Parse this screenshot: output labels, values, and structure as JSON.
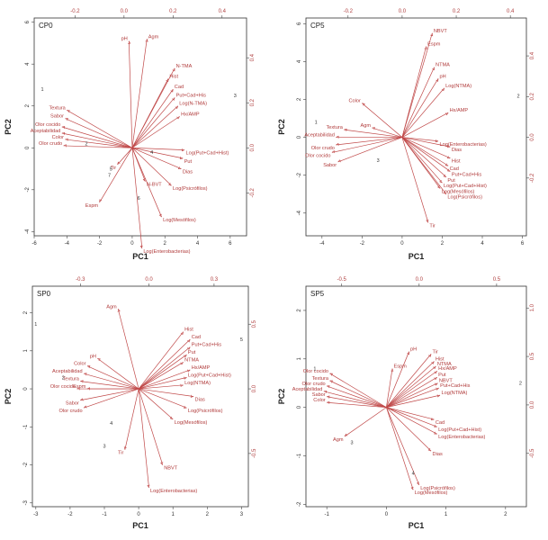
{
  "chart_data": [
    {
      "type": "biplot",
      "title": "CP0",
      "xlabel": "PC1",
      "ylabel": "PC2",
      "xlim": [
        -6,
        7
      ],
      "ylim": [
        -4.2,
        6.2
      ],
      "x_ticks": [
        -6,
        -4,
        -2,
        0,
        2,
        4,
        6
      ],
      "y_ticks": [
        -4,
        -2,
        0,
        2,
        4,
        6
      ],
      "top_ticks": [
        "-0.2",
        "0.0",
        "0.2",
        "0.4"
      ],
      "top_tick_x": [
        -3.5,
        -0.5,
        2.5,
        5.5
      ],
      "right_ticks": [
        "0.4",
        "0.2",
        "0.0",
        "-0.2"
      ],
      "right_tick_y": [
        4.3,
        2.15,
        0,
        -2.15
      ],
      "vectors": [
        {
          "label": "pH",
          "x": -0.2,
          "y": 5.1
        },
        {
          "label": "Agm",
          "x": 0.9,
          "y": 5.2
        },
        {
          "label": "N-TMA",
          "x": 2.6,
          "y": 3.8
        },
        {
          "label": "Hist",
          "x": 2.2,
          "y": 3.3
        },
        {
          "label": "Cad",
          "x": 2.5,
          "y": 2.8
        },
        {
          "label": "Put+Cad+His",
          "x": 2.6,
          "y": 2.4
        },
        {
          "label": "Log(N-TMA)",
          "x": 2.8,
          "y": 2.0
        },
        {
          "label": "Hx/AMP",
          "x": 2.9,
          "y": 1.5
        },
        {
          "label": "Log(Put+Cad+Hist)",
          "x": 3.2,
          "y": -0.1
        },
        {
          "label": "Put",
          "x": 3.1,
          "y": -0.5
        },
        {
          "label": "Dias",
          "x": 3.0,
          "y": -1.0
        },
        {
          "label": "Log(Psicrófilos)",
          "x": 2.4,
          "y": -1.8
        },
        {
          "label": "N-BVT",
          "x": 0.8,
          "y": -1.6
        },
        {
          "label": "Log(Mesófilos)",
          "x": 1.8,
          "y": -3.3
        },
        {
          "label": "Log(Enterobacterias)",
          "x": 0.6,
          "y": -4.8
        },
        {
          "label": "Espm",
          "x": -2.0,
          "y": -2.6
        },
        {
          "label": "Tir",
          "x": -0.9,
          "y": -0.8
        },
        {
          "label": "Textura",
          "x": -4.0,
          "y": 1.8
        },
        {
          "label": "Sabor",
          "x": -4.1,
          "y": 1.4
        },
        {
          "label": "Olor cocido",
          "x": -4.3,
          "y": 1.0
        },
        {
          "label": "Aceptabilidad",
          "x": -4.3,
          "y": 0.7
        },
        {
          "label": "Color",
          "x": -4.1,
          "y": 0.4
        },
        {
          "label": "Olor crudo",
          "x": -4.2,
          "y": 0.1
        }
      ],
      "observations": [
        {
          "label": "1",
          "x": -5.5,
          "y": 2.8
        },
        {
          "label": "3",
          "x": 6.3,
          "y": 2.5
        },
        {
          "label": "2",
          "x": -2.8,
          "y": 0.2
        },
        {
          "label": "4",
          "x": 1.2,
          "y": -0.2
        },
        {
          "label": "5",
          "x": -1.3,
          "y": -1.0
        },
        {
          "label": "6",
          "x": 0.4,
          "y": -2.4
        },
        {
          "label": "7",
          "x": -1.4,
          "y": -1.3
        }
      ]
    },
    {
      "type": "biplot",
      "title": "CP5",
      "xlabel": "PC1",
      "ylabel": "PC2",
      "xlim": [
        -4.8,
        6.2
      ],
      "ylim": [
        -5.2,
        6.3
      ],
      "x_ticks": [
        -4,
        -2,
        0,
        2,
        4,
        6
      ],
      "y_ticks": [
        -4,
        -2,
        0,
        2,
        4,
        6
      ],
      "top_ticks": [
        "-0.2",
        "0.0",
        "0.2",
        "0.4"
      ],
      "top_tick_x": [
        -2.7,
        0,
        2.7,
        5.4
      ],
      "right_ticks": [
        "0.4",
        "0.2",
        "0.0",
        "-0.2"
      ],
      "right_tick_y": [
        4.3,
        2.15,
        0,
        -2.15
      ],
      "vectors": [
        {
          "label": "NBVT",
          "x": 1.5,
          "y": 5.5
        },
        {
          "label": "Espm",
          "x": 1.2,
          "y": 4.8
        },
        {
          "label": "NTMA",
          "x": 1.6,
          "y": 3.7
        },
        {
          "label": "pH",
          "x": 1.8,
          "y": 3.1
        },
        {
          "label": "Log(NTMA)",
          "x": 2.1,
          "y": 2.6
        },
        {
          "label": "Hx/AMP",
          "x": 2.3,
          "y": 1.3
        },
        {
          "label": "Log(Enterobacterias)",
          "x": 1.8,
          "y": -0.2
        },
        {
          "label": "Dias",
          "x": 2.4,
          "y": -0.5
        },
        {
          "label": "Hist",
          "x": 2.4,
          "y": -1.1
        },
        {
          "label": "Cad",
          "x": 2.3,
          "y": -1.5
        },
        {
          "label": "Put+Cad+His",
          "x": 2.4,
          "y": -1.8
        },
        {
          "label": "Put",
          "x": 2.2,
          "y": -2.1
        },
        {
          "label": "Log(Put+Cad+Hist)",
          "x": 2.0,
          "y": -2.4
        },
        {
          "label": "Log(Mesófilos)",
          "x": 1.9,
          "y": -2.7
        },
        {
          "label": "Log(Psicrófilos)",
          "x": 2.2,
          "y": -3.0
        },
        {
          "label": "Tir",
          "x": 1.3,
          "y": -4.5
        },
        {
          "label": "Color",
          "x": -2.0,
          "y": 1.8
        },
        {
          "label": "Agm",
          "x": -1.5,
          "y": 0.5
        },
        {
          "label": "Textura",
          "x": -2.9,
          "y": 0.4
        },
        {
          "label": "Aceptabilidad",
          "x": -3.3,
          "y": 0.0
        },
        {
          "label": "Olor crudo",
          "x": -3.3,
          "y": -0.4
        },
        {
          "label": "Olor cocido",
          "x": -3.5,
          "y": -0.8
        },
        {
          "label": "Sabor",
          "x": -3.2,
          "y": -1.3
        }
      ],
      "observations": [
        {
          "label": "1",
          "x": -4.3,
          "y": 0.8
        },
        {
          "label": "2",
          "x": 5.8,
          "y": 2.2
        },
        {
          "label": "3",
          "x": -1.2,
          "y": -1.2
        }
      ]
    },
    {
      "type": "biplot",
      "title": "SP0",
      "xlabel": "PC1",
      "ylabel": "PC2",
      "xlim": [
        -3.1,
        3.2
      ],
      "ylim": [
        -3.1,
        2.7
      ],
      "x_ticks": [
        -3,
        -2,
        -1,
        0,
        1,
        2,
        3
      ],
      "y_ticks": [
        -3,
        -2,
        -1,
        0,
        1,
        2
      ],
      "top_ticks": [
        "-0.3",
        "0.0",
        "0.3"
      ],
      "top_tick_x": [
        -1.7,
        0.3,
        2.2
      ],
      "right_ticks": [
        "0.5",
        "0.0",
        "-0.5"
      ],
      "right_tick_y": [
        1.7,
        0,
        -1.7
      ],
      "vectors": [
        {
          "label": "Agm",
          "x": -0.6,
          "y": 2.1
        },
        {
          "label": "Hist",
          "x": 1.3,
          "y": 1.5
        },
        {
          "label": "Cad",
          "x": 1.5,
          "y": 1.3
        },
        {
          "label": "Put+Cad+His",
          "x": 1.5,
          "y": 1.1
        },
        {
          "label": "Put",
          "x": 1.4,
          "y": 0.9
        },
        {
          "label": "NTMA",
          "x": 1.3,
          "y": 0.7
        },
        {
          "label": "Hx/AMP",
          "x": 1.5,
          "y": 0.5
        },
        {
          "label": "Log(Put+Cad+Hist)",
          "x": 1.4,
          "y": 0.3
        },
        {
          "label": "Log(NTMA)",
          "x": 1.3,
          "y": 0.1
        },
        {
          "label": "Dias",
          "x": 1.6,
          "y": -0.2
        },
        {
          "label": "Log(Psicrófilos)",
          "x": 1.4,
          "y": -0.5
        },
        {
          "label": "Log(Mesófilos)",
          "x": 1.0,
          "y": -0.8
        },
        {
          "label": "NBVT",
          "x": 0.7,
          "y": -2.0
        },
        {
          "label": "Log(Enterobacterias)",
          "x": 0.3,
          "y": -2.6
        },
        {
          "label": "Tir",
          "x": -0.4,
          "y": -1.6
        },
        {
          "label": "pH",
          "x": -1.2,
          "y": 0.8
        },
        {
          "label": "Color",
          "x": -1.5,
          "y": 0.6
        },
        {
          "label": "Aceptabilidad",
          "x": -1.6,
          "y": 0.4
        },
        {
          "label": "Textura",
          "x": -1.7,
          "y": 0.2
        },
        {
          "label": "Espm",
          "x": -1.5,
          "y": 0.0
        },
        {
          "label": "Olor cocido",
          "x": -1.8,
          "y": 0.0
        },
        {
          "label": "Sabor",
          "x": -1.7,
          "y": -0.3
        },
        {
          "label": "Olor crudo",
          "x": -1.6,
          "y": -0.5
        }
      ],
      "observations": [
        {
          "label": "1",
          "x": -3.0,
          "y": 1.7
        },
        {
          "label": "2",
          "x": -2.2,
          "y": 0.3
        },
        {
          "label": "3",
          "x": -1.0,
          "y": -1.5
        },
        {
          "label": "4",
          "x": -0.8,
          "y": -0.9
        },
        {
          "label": "5",
          "x": 3.0,
          "y": 1.3
        }
      ]
    },
    {
      "type": "biplot",
      "title": "SP5",
      "xlabel": "PC1",
      "ylabel": "PC2",
      "xlim": [
        -1.35,
        2.35
      ],
      "ylim": [
        -2.05,
        2.5
      ],
      "x_ticks": [
        -1,
        0,
        1,
        2
      ],
      "y_ticks": [
        -2,
        -1,
        0,
        1,
        2
      ],
      "top_ticks": [
        "-0.5",
        "0.0",
        "0.5"
      ],
      "top_tick_x": [
        -0.75,
        0.55,
        1.85
      ],
      "right_ticks": [
        "1.0",
        "0.5",
        "0.0",
        "-0.5"
      ],
      "right_tick_y": [
        2.05,
        1.05,
        0.05,
        -0.95
      ],
      "vectors": [
        {
          "label": "pH",
          "x": 0.38,
          "y": 1.15
        },
        {
          "label": "Tir",
          "x": 0.75,
          "y": 1.1
        },
        {
          "label": "Hist",
          "x": 0.8,
          "y": 0.95
        },
        {
          "label": "NTMA",
          "x": 0.83,
          "y": 0.85
        },
        {
          "label": "Hx/AMP",
          "x": 0.85,
          "y": 0.75
        },
        {
          "label": "Put",
          "x": 0.85,
          "y": 0.62
        },
        {
          "label": "NBVT",
          "x": 0.86,
          "y": 0.5
        },
        {
          "label": "Put+Cad+His",
          "x": 0.88,
          "y": 0.4
        },
        {
          "label": "Log(NTMA)",
          "x": 0.9,
          "y": 0.25
        },
        {
          "label": "Espm",
          "x": 0.1,
          "y": 0.8
        },
        {
          "label": "Cad",
          "x": 0.8,
          "y": -0.25
        },
        {
          "label": "Log(Put+Cad+Hist)",
          "x": 0.85,
          "y": -0.4
        },
        {
          "label": "Log(Enterobacterias)",
          "x": 0.85,
          "y": -0.55
        },
        {
          "label": "Dias",
          "x": 0.75,
          "y": -0.9
        },
        {
          "label": "Log(Psicrófilos)",
          "x": 0.55,
          "y": -1.6
        },
        {
          "label": "Log(Mesófilos)",
          "x": 0.45,
          "y": -1.7
        },
        {
          "label": "Agm",
          "x": -0.7,
          "y": -0.6
        },
        {
          "label": "Olor cocido",
          "x": -0.95,
          "y": 0.7
        },
        {
          "label": "Textura",
          "x": -0.95,
          "y": 0.55
        },
        {
          "label": "Olor crudo",
          "x": -1.0,
          "y": 0.44
        },
        {
          "label": "Aceptabilidad",
          "x": -1.05,
          "y": 0.33
        },
        {
          "label": "Sabor",
          "x": -1.0,
          "y": 0.22
        },
        {
          "label": "Color",
          "x": -1.0,
          "y": 0.1
        }
      ],
      "observations": [
        {
          "label": "1",
          "x": -1.2,
          "y": 0.8
        },
        {
          "label": "2",
          "x": 2.25,
          "y": 0.5
        },
        {
          "label": "3",
          "x": -0.58,
          "y": -0.72
        },
        {
          "label": "4",
          "x": 0.45,
          "y": -1.35
        }
      ]
    }
  ]
}
